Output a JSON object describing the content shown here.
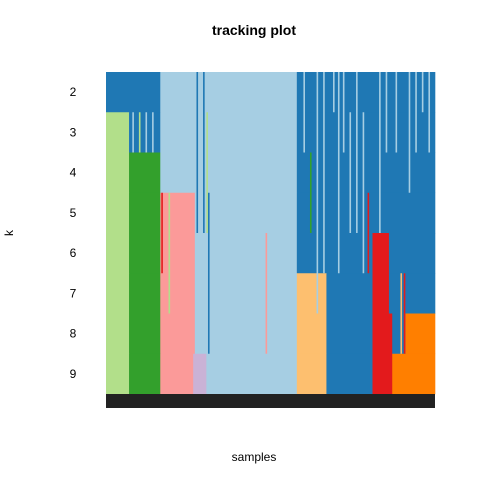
{
  "chart_data": {
    "type": "heatmap",
    "title": "tracking plot",
    "xlabel": "samples",
    "ylabel": "k",
    "y_categories": [
      "2",
      "3",
      "4",
      "5",
      "6",
      "7",
      "8",
      "9"
    ],
    "grid": false,
    "legend": "none",
    "colors": {
      "dark_blue": "#1f78b4",
      "light_blue": "#a6cee3",
      "light_green": "#b2df8a",
      "green": "#33a02c",
      "pink": "#fb9a99",
      "lavender": "#cab2d6",
      "peach": "#fdbf6f",
      "red": "#e31a1c",
      "orange": "#ff7f00",
      "bottom_bar": "#222222"
    },
    "rows": [
      {
        "k": "2",
        "segments": [
          {
            "from": 0,
            "to": 16.5,
            "color": "dark_blue"
          },
          {
            "from": 16.5,
            "to": 58,
            "color": "light_blue"
          },
          {
            "from": 58,
            "to": 100,
            "color": "dark_blue"
          }
        ]
      },
      {
        "k": "3",
        "segments": [
          {
            "from": 0,
            "to": 7,
            "color": "light_green"
          },
          {
            "from": 7,
            "to": 16.5,
            "color": "dark_blue"
          },
          {
            "from": 16.5,
            "to": 58,
            "color": "light_blue"
          },
          {
            "from": 58,
            "to": 100,
            "color": "dark_blue"
          }
        ]
      },
      {
        "k": "4",
        "segments": [
          {
            "from": 0,
            "to": 7,
            "color": "light_green"
          },
          {
            "from": 7,
            "to": 16.5,
            "color": "green"
          },
          {
            "from": 16.5,
            "to": 58,
            "color": "light_blue"
          },
          {
            "from": 58,
            "to": 100,
            "color": "dark_blue"
          }
        ]
      },
      {
        "k": "5",
        "segments": [
          {
            "from": 0,
            "to": 7,
            "color": "light_green"
          },
          {
            "from": 7,
            "to": 16.5,
            "color": "green"
          },
          {
            "from": 16.5,
            "to": 27,
            "color": "pink"
          },
          {
            "from": 27,
            "to": 58,
            "color": "light_blue"
          },
          {
            "from": 58,
            "to": 100,
            "color": "dark_blue"
          }
        ]
      },
      {
        "k": "6",
        "segments": [
          {
            "from": 0,
            "to": 7,
            "color": "light_green"
          },
          {
            "from": 7,
            "to": 16.5,
            "color": "green"
          },
          {
            "from": 16.5,
            "to": 27,
            "color": "pink"
          },
          {
            "from": 27,
            "to": 58,
            "color": "light_blue"
          },
          {
            "from": 58,
            "to": 81,
            "color": "dark_blue"
          },
          {
            "from": 81,
            "to": 86,
            "color": "red"
          },
          {
            "from": 86,
            "to": 100,
            "color": "dark_blue"
          }
        ]
      },
      {
        "k": "7",
        "segments": [
          {
            "from": 0,
            "to": 7,
            "color": "light_green"
          },
          {
            "from": 7,
            "to": 16.5,
            "color": "green"
          },
          {
            "from": 16.5,
            "to": 27,
            "color": "pink"
          },
          {
            "from": 27,
            "to": 58,
            "color": "light_blue"
          },
          {
            "from": 58,
            "to": 67,
            "color": "peach"
          },
          {
            "from": 67,
            "to": 81,
            "color": "dark_blue"
          },
          {
            "from": 81,
            "to": 86,
            "color": "red"
          },
          {
            "from": 86,
            "to": 100,
            "color": "dark_blue"
          }
        ]
      },
      {
        "k": "8",
        "segments": [
          {
            "from": 0,
            "to": 7,
            "color": "light_green"
          },
          {
            "from": 7,
            "to": 16.5,
            "color": "green"
          },
          {
            "from": 16.5,
            "to": 27,
            "color": "pink"
          },
          {
            "from": 27,
            "to": 58,
            "color": "light_blue"
          },
          {
            "from": 58,
            "to": 67,
            "color": "peach"
          },
          {
            "from": 67,
            "to": 81,
            "color": "dark_blue"
          },
          {
            "from": 81,
            "to": 87,
            "color": "red"
          },
          {
            "from": 87,
            "to": 91,
            "color": "dark_blue"
          },
          {
            "from": 91,
            "to": 100,
            "color": "orange"
          }
        ]
      },
      {
        "k": "9",
        "segments": [
          {
            "from": 0,
            "to": 7,
            "color": "light_green"
          },
          {
            "from": 7,
            "to": 16.5,
            "color": "green"
          },
          {
            "from": 16.5,
            "to": 26.5,
            "color": "pink"
          },
          {
            "from": 26.5,
            "to": 30.5,
            "color": "lavender"
          },
          {
            "from": 30.5,
            "to": 58,
            "color": "light_blue"
          },
          {
            "from": 58,
            "to": 67,
            "color": "peach"
          },
          {
            "from": 67,
            "to": 81,
            "color": "dark_blue"
          },
          {
            "from": 81,
            "to": 87,
            "color": "red"
          },
          {
            "from": 87,
            "to": 100,
            "color": "orange"
          }
        ]
      }
    ],
    "streaks": [
      {
        "x": 8,
        "k_from": "3",
        "k_to": "3",
        "color": "light_blue"
      },
      {
        "x": 10,
        "k_from": "3",
        "k_to": "3",
        "color": "light_green"
      },
      {
        "x": 12,
        "k_from": "3",
        "k_to": "3",
        "color": "light_blue"
      },
      {
        "x": 14,
        "k_from": "3",
        "k_to": "3",
        "color": "light_blue"
      },
      {
        "x": 27.5,
        "k_from": "2",
        "k_to": "5",
        "color": "dark_blue"
      },
      {
        "x": 29.5,
        "k_from": "2",
        "k_to": "5",
        "color": "dark_blue"
      },
      {
        "x": 30.5,
        "k_from": "3",
        "k_to": "5",
        "color": "light_green"
      },
      {
        "x": 31,
        "k_from": "5",
        "k_to": "8",
        "color": "dark_blue"
      },
      {
        "x": 19,
        "k_from": "5",
        "k_to": "7",
        "color": "light_green"
      },
      {
        "x": 16.8,
        "k_from": "5",
        "k_to": "6",
        "color": "red"
      },
      {
        "x": 48.5,
        "k_from": "6",
        "k_to": "8",
        "color": "pink"
      },
      {
        "x": 60,
        "k_from": "2",
        "k_to": "3",
        "color": "light_blue"
      },
      {
        "x": 62,
        "k_from": "4",
        "k_to": "5",
        "color": "green"
      },
      {
        "x": 64,
        "k_from": "2",
        "k_to": "7",
        "color": "light_blue"
      },
      {
        "x": 66,
        "k_from": "2",
        "k_to": "6",
        "color": "light_blue"
      },
      {
        "x": 69,
        "k_from": "2",
        "k_to": "2",
        "color": "light_blue"
      },
      {
        "x": 70.5,
        "k_from": "2",
        "k_to": "6",
        "color": "light_blue"
      },
      {
        "x": 72,
        "k_from": "2",
        "k_to": "3",
        "color": "light_blue"
      },
      {
        "x": 74,
        "k_from": "3",
        "k_to": "5",
        "color": "light_blue"
      },
      {
        "x": 76,
        "k_from": "2",
        "k_to": "5",
        "color": "light_blue"
      },
      {
        "x": 78,
        "k_from": "3",
        "k_to": "6",
        "color": "light_blue"
      },
      {
        "x": 79.5,
        "k_from": "5",
        "k_to": "6",
        "color": "red"
      },
      {
        "x": 83,
        "k_from": "2",
        "k_to": "5",
        "color": "light_blue"
      },
      {
        "x": 85,
        "k_from": "2",
        "k_to": "3",
        "color": "light_blue"
      },
      {
        "x": 88,
        "k_from": "2",
        "k_to": "3",
        "color": "light_blue"
      },
      {
        "x": 89.5,
        "k_from": "7",
        "k_to": "8",
        "color": "peach"
      },
      {
        "x": 90.5,
        "k_from": "7",
        "k_to": "8",
        "color": "red"
      },
      {
        "x": 92,
        "k_from": "2",
        "k_to": "4",
        "color": "light_blue"
      },
      {
        "x": 94,
        "k_from": "2",
        "k_to": "3",
        "color": "light_blue"
      },
      {
        "x": 96,
        "k_from": "2",
        "k_to": "2",
        "color": "light_blue"
      },
      {
        "x": 98,
        "k_from": "2",
        "k_to": "3",
        "color": "light_blue"
      }
    ]
  }
}
